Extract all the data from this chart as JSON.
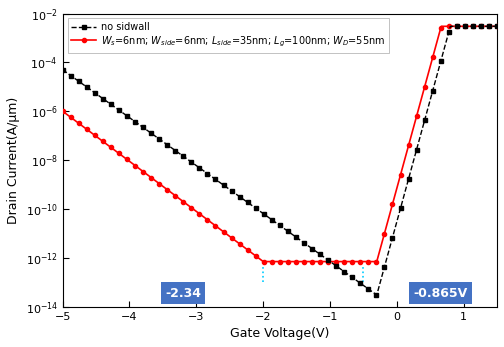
{
  "xlim": [
    -5,
    1.5
  ],
  "ylim_log": [
    -14,
    -2
  ],
  "xlabel": "Gate Voltage(V)",
  "ylabel": "Drain Current(A/μm)",
  "legend1": "no sidwall",
  "label1_text": "-2.34",
  "label2_text": "-0.865V",
  "vline1_x": -2.0,
  "vline2_x": -0.5,
  "black_color": "#000000",
  "red_color": "#ff0000",
  "cyan_color": "#00ccff",
  "box_color": "#4472c4",
  "box_text_color": "#ffffff",
  "bg_color": "#ffffff",
  "black_start": 5e-05,
  "black_min": 3e-14,
  "black_min_vg": -0.3,
  "red_start": 1e-06,
  "red_min": 7e-13,
  "red_flat_start": -2.0,
  "red_rise_vg": -0.3,
  "on_current": 0.003,
  "rise_rate": 23.0
}
